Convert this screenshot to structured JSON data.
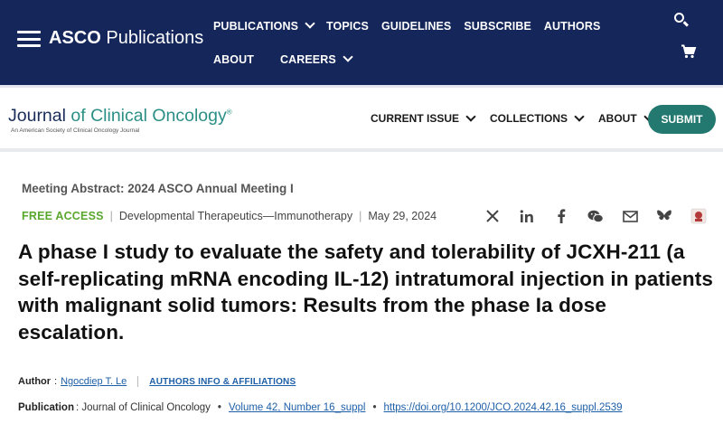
{
  "top_nav": {
    "brand_bold": "ASCO",
    "brand_rest": " Publications",
    "items": [
      {
        "label": "PUBLICATIONS",
        "dropdown": true
      },
      {
        "label": "TOPICS",
        "dropdown": false
      },
      {
        "label": "GUIDELINES",
        "dropdown": false
      },
      {
        "label": "SUBSCRIBE",
        "dropdown": false
      },
      {
        "label": "AUTHORS",
        "dropdown": false
      },
      {
        "label": "ABOUT",
        "dropdown": false
      },
      {
        "label": "CAREERS",
        "dropdown": true
      }
    ],
    "icons": [
      "menu-icon",
      "search-icon",
      "cart-icon"
    ]
  },
  "journal": {
    "name_journal": "Journal",
    "name_of": " of ",
    "name_rest": "Clinical Oncology",
    "trademark": "®",
    "subtitle": "An American Society of Clinical Oncology Journal",
    "nav": [
      {
        "label": "CURRENT ISSUE"
      },
      {
        "label": "COLLECTIONS"
      },
      {
        "label": "ABOUT"
      }
    ],
    "submit_label": "SUBMIT"
  },
  "article": {
    "meeting": "Meeting Abstract: 2024 ASCO Annual Meeting I",
    "access": "FREE ACCESS",
    "subject": "Developmental Therapeutics—Immunotherapy",
    "date": "May 29, 2024",
    "title": "A phase I study to evaluate the safety and tolerability of JCXH-211 (a self-replicating mRNA encoding IL-12) intratumoral injection in patients with malignant solid tumors: Results from the phase Ia dose escalation.",
    "author_label": "Author",
    "author_name": "Ngocdiep T. Le",
    "affiliations_label": "AUTHORS INFO & AFFILIATIONS",
    "publication_label": "Publication",
    "publication_journal": ": Journal of Clinical Oncology",
    "volume": "Volume 42, Number 16_suppl",
    "doi": "https://doi.org/10.1200/JCO.2024.42.16_suppl.2539"
  },
  "share_icons": [
    "x-icon",
    "linkedin-icon",
    "facebook-icon",
    "wechat-icon",
    "email-icon",
    "bluesky-icon",
    "mendeley-icon"
  ],
  "colors": {
    "navy": "#14265a",
    "teal_button": "#23786f",
    "free_access_green": "#5aa72e",
    "link_blue": "#1d5fa8"
  }
}
